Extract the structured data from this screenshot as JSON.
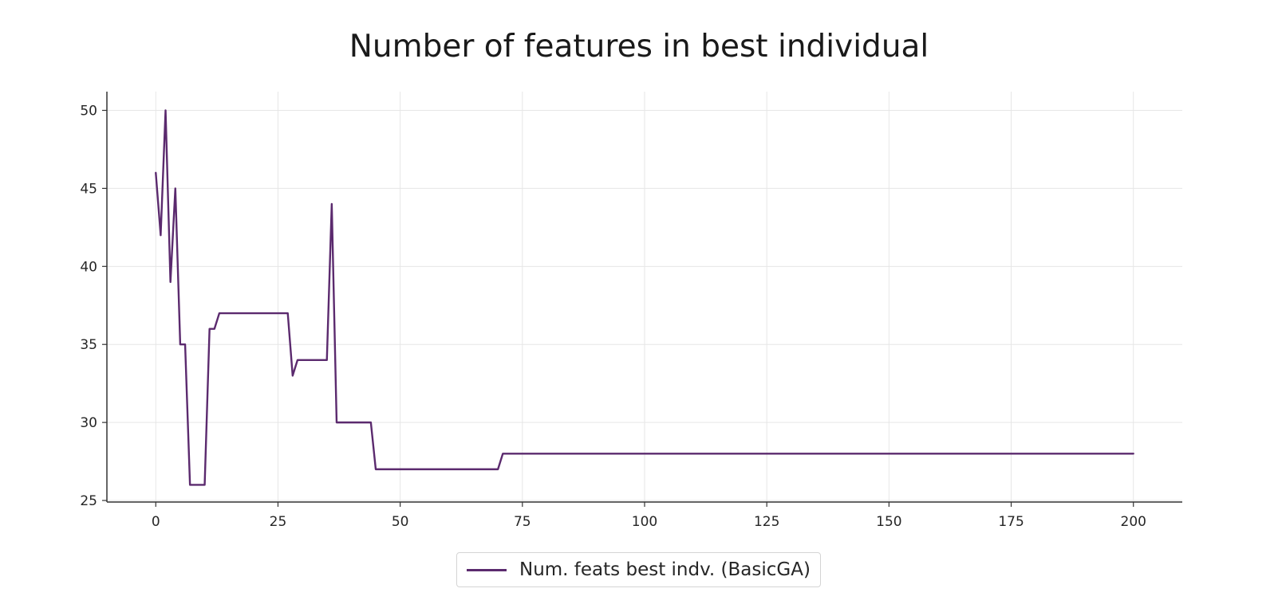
{
  "chart_data": {
    "type": "line",
    "title": "Number of features in best individual",
    "xlabel": "",
    "ylabel": "",
    "xlim": [
      -10,
      210
    ],
    "ylim": [
      24.9,
      51.2
    ],
    "xticks": [
      "0",
      "25",
      "50",
      "75",
      "100",
      "125",
      "150",
      "175",
      "200"
    ],
    "yticks": [
      "25",
      "30",
      "35",
      "40",
      "45",
      "50"
    ],
    "grid": true,
    "legend_position": "bottom-center",
    "series": [
      {
        "name": "Num. feats best indv. (BasicGA)",
        "color": "#5b2a6e",
        "points": [
          [
            0,
            46
          ],
          [
            1,
            42
          ],
          [
            2,
            50
          ],
          [
            3,
            39
          ],
          [
            4,
            45
          ],
          [
            5,
            35
          ],
          [
            6,
            35
          ],
          [
            7,
            26
          ],
          [
            8,
            26
          ],
          [
            9,
            26
          ],
          [
            10,
            26
          ],
          [
            11,
            36
          ],
          [
            12,
            36
          ],
          [
            13,
            37
          ],
          [
            14,
            37
          ],
          [
            20,
            37
          ],
          [
            27,
            37
          ],
          [
            28,
            33
          ],
          [
            29,
            34
          ],
          [
            30,
            34
          ],
          [
            35,
            34
          ],
          [
            36,
            44
          ],
          [
            37,
            30
          ],
          [
            38,
            30
          ],
          [
            44,
            30
          ],
          [
            45,
            27
          ],
          [
            46,
            27
          ],
          [
            60,
            27
          ],
          [
            70,
            27
          ],
          [
            71,
            28
          ],
          [
            72,
            28
          ],
          [
            100,
            28
          ],
          [
            150,
            28
          ],
          [
            200,
            28
          ]
        ]
      }
    ]
  }
}
